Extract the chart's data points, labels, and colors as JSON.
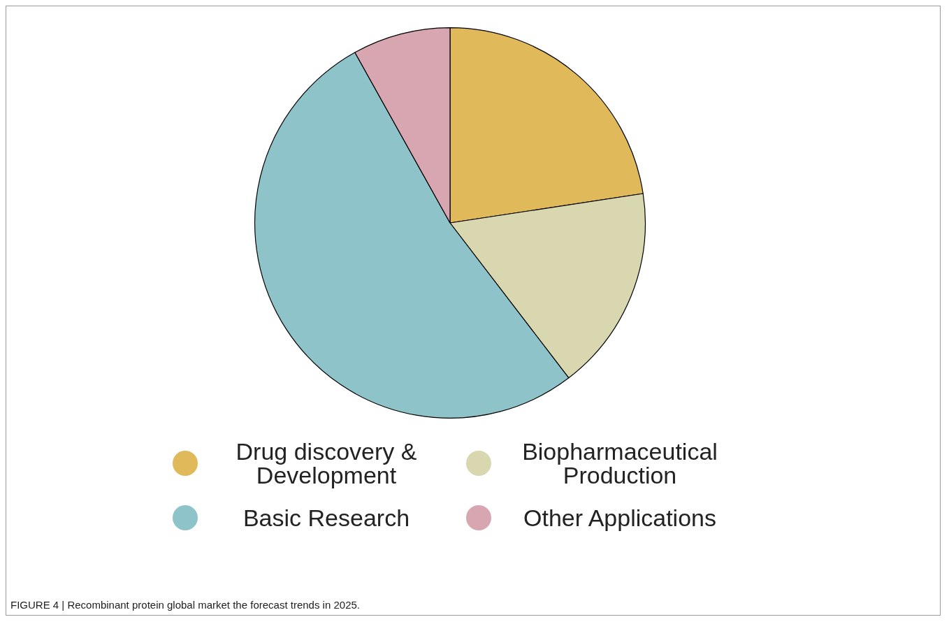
{
  "chart_data": {
    "type": "pie",
    "categories": [
      "Drug discovery & Development",
      "Biopharmaceutical Production",
      "Basic Research",
      "Other Applications"
    ],
    "values": [
      22.6,
      17.0,
      52.3,
      8.1
    ],
    "colors": [
      "#e0b95a",
      "#d9d7b0",
      "#8fc3ca",
      "#d8a6b0"
    ],
    "legend": "bottom",
    "annotations": [
      "FIGURE 4 | Recombinant protein global market the forecast trends in 2025."
    ]
  }
}
